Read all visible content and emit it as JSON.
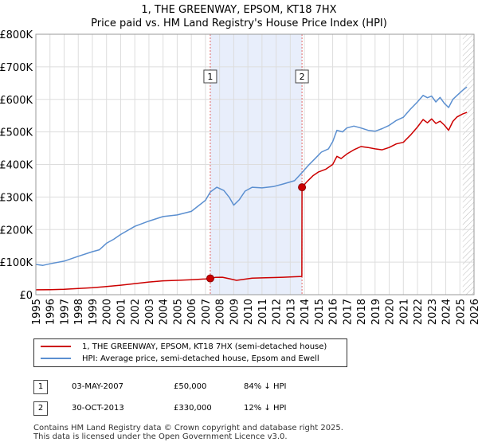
{
  "header": {
    "title_line1": "1, THE GREENWAY, EPSOM, KT18 7HX",
    "title_line2": "Price paid vs. HM Land Registry's House Price Index (HPI)"
  },
  "colors": {
    "property_line": "#cc0000",
    "hpi_line": "#5b8fd0",
    "shade": "#e8eefb",
    "grid": "#dddddd",
    "marker_line": "#e06666"
  },
  "legend": {
    "property_label": "1, THE GREENWAY, EPSOM, KT18 7HX (semi-detached house)",
    "hpi_label": "HPI: Average price, semi-detached house, Epsom and Ewell"
  },
  "transactions": [
    {
      "num": "1",
      "date": "03-MAY-2007",
      "price": "£50,000",
      "hpi": "84% ↓ HPI"
    },
    {
      "num": "2",
      "date": "30-OCT-2013",
      "price": "£330,000",
      "hpi": "12% ↓ HPI"
    }
  ],
  "footer": {
    "line1": "Contains HM Land Registry data © Crown copyright and database right 2025.",
    "line2": "This data is licensed under the Open Government Licence v3.0."
  },
  "chart_data": {
    "type": "line",
    "title": "Price paid vs. HM Land Registry's House Price Index (HPI)",
    "xlim": [
      1995,
      2026
    ],
    "ylim": [
      0,
      800000
    ],
    "x_ticks": [
      "1995",
      "1996",
      "1997",
      "1998",
      "1999",
      "2000",
      "2001",
      "2002",
      "2003",
      "2004",
      "2005",
      "2006",
      "2007",
      "2008",
      "2009",
      "2010",
      "2011",
      "2012",
      "2013",
      "2014",
      "2015",
      "2016",
      "2017",
      "2018",
      "2019",
      "2020",
      "2021",
      "2022",
      "2023",
      "2024",
      "2025",
      "2026"
    ],
    "y_ticks": [
      {
        "value": 0,
        "label": "£0"
      },
      {
        "value": 100000,
        "label": "£100K"
      },
      {
        "value": 200000,
        "label": "£200K"
      },
      {
        "value": 300000,
        "label": "£300K"
      },
      {
        "value": 400000,
        "label": "£400K"
      },
      {
        "value": 500000,
        "label": "£500K"
      },
      {
        "value": 600000,
        "label": "£600K"
      },
      {
        "value": 700000,
        "label": "£700K"
      },
      {
        "value": 800000,
        "label": "£800K"
      }
    ],
    "shaded_range": [
      2007.34,
      2013.83
    ],
    "hatch_from": 2025.2,
    "sale_markers": [
      {
        "label": "1",
        "x": 2007.34,
        "y": 50000
      },
      {
        "label": "2",
        "x": 2013.83,
        "y": 330000
      }
    ],
    "series": [
      {
        "name": "1, THE GREENWAY, EPSOM, KT18 7HX (semi-detached house)",
        "color": "#cc0000",
        "points": [
          [
            1995.0,
            15000
          ],
          [
            1996.0,
            15500
          ],
          [
            1997.0,
            16500
          ],
          [
            1998.0,
            19000
          ],
          [
            1999.0,
            21500
          ],
          [
            2000.0,
            25000
          ],
          [
            2001.0,
            29000
          ],
          [
            2002.0,
            34000
          ],
          [
            2003.0,
            39000
          ],
          [
            2004.0,
            42500
          ],
          [
            2005.0,
            44000
          ],
          [
            2006.0,
            46000
          ],
          [
            2007.0,
            48500
          ],
          [
            2007.34,
            50000
          ],
          [
            2007.7,
            53000
          ],
          [
            2008.2,
            53500
          ],
          [
            2008.7,
            49000
          ],
          [
            2009.2,
            44000
          ],
          [
            2009.7,
            47000
          ],
          [
            2010.3,
            51000
          ],
          [
            2011.0,
            51500
          ],
          [
            2011.8,
            52500
          ],
          [
            2012.5,
            53500
          ],
          [
            2013.3,
            55000
          ],
          [
            2013.82,
            56000
          ],
          [
            2013.83,
            330000
          ],
          [
            2014.2,
            348000
          ],
          [
            2014.6,
            365000
          ],
          [
            2015.0,
            377000
          ],
          [
            2015.5,
            385000
          ],
          [
            2016.0,
            400000
          ],
          [
            2016.3,
            425000
          ],
          [
            2016.6,
            418000
          ],
          [
            2017.0,
            432000
          ],
          [
            2017.5,
            445000
          ],
          [
            2018.0,
            455000
          ],
          [
            2018.5,
            452000
          ],
          [
            2019.0,
            448000
          ],
          [
            2019.5,
            445000
          ],
          [
            2020.0,
            452000
          ],
          [
            2020.5,
            463000
          ],
          [
            2021.0,
            468000
          ],
          [
            2021.5,
            490000
          ],
          [
            2022.0,
            515000
          ],
          [
            2022.4,
            538000
          ],
          [
            2022.7,
            528000
          ],
          [
            2023.0,
            540000
          ],
          [
            2023.3,
            526000
          ],
          [
            2023.6,
            533000
          ],
          [
            2023.9,
            521000
          ],
          [
            2024.2,
            505000
          ],
          [
            2024.5,
            532000
          ],
          [
            2024.8,
            546000
          ],
          [
            2025.2,
            555000
          ],
          [
            2025.5,
            560000
          ]
        ]
      },
      {
        "name": "HPI: Average price, semi-detached house, Epsom and Ewell",
        "color": "#5b8fd0",
        "points": [
          [
            1995.0,
            93000
          ],
          [
            1995.5,
            90000
          ],
          [
            1996.0,
            95000
          ],
          [
            1997.0,
            103000
          ],
          [
            1998.0,
            118000
          ],
          [
            1999.0,
            132000
          ],
          [
            1999.5,
            138000
          ],
          [
            2000.0,
            158000
          ],
          [
            2000.5,
            170000
          ],
          [
            2001.0,
            185000
          ],
          [
            2002.0,
            210000
          ],
          [
            2003.0,
            226000
          ],
          [
            2004.0,
            240000
          ],
          [
            2005.0,
            245000
          ],
          [
            2006.0,
            256000
          ],
          [
            2007.0,
            290000
          ],
          [
            2007.34,
            315000
          ],
          [
            2007.8,
            330000
          ],
          [
            2008.3,
            320000
          ],
          [
            2008.7,
            298000
          ],
          [
            2009.0,
            275000
          ],
          [
            2009.4,
            292000
          ],
          [
            2009.8,
            318000
          ],
          [
            2010.3,
            330000
          ],
          [
            2011.0,
            328000
          ],
          [
            2011.8,
            332000
          ],
          [
            2012.5,
            340000
          ],
          [
            2013.3,
            350000
          ],
          [
            2013.83,
            375000
          ],
          [
            2014.3,
            398000
          ],
          [
            2014.8,
            420000
          ],
          [
            2015.2,
            438000
          ],
          [
            2015.7,
            448000
          ],
          [
            2016.0,
            470000
          ],
          [
            2016.3,
            505000
          ],
          [
            2016.7,
            500000
          ],
          [
            2017.0,
            512000
          ],
          [
            2017.5,
            518000
          ],
          [
            2018.0,
            512000
          ],
          [
            2018.5,
            505000
          ],
          [
            2019.0,
            502000
          ],
          [
            2019.5,
            510000
          ],
          [
            2020.0,
            520000
          ],
          [
            2020.5,
            535000
          ],
          [
            2021.0,
            545000
          ],
          [
            2021.5,
            570000
          ],
          [
            2022.0,
            592000
          ],
          [
            2022.4,
            612000
          ],
          [
            2022.7,
            605000
          ],
          [
            2023.0,
            610000
          ],
          [
            2023.3,
            592000
          ],
          [
            2023.6,
            606000
          ],
          [
            2023.9,
            588000
          ],
          [
            2024.2,
            575000
          ],
          [
            2024.5,
            600000
          ],
          [
            2024.8,
            612000
          ],
          [
            2025.2,
            628000
          ],
          [
            2025.5,
            638000
          ]
        ]
      }
    ]
  }
}
